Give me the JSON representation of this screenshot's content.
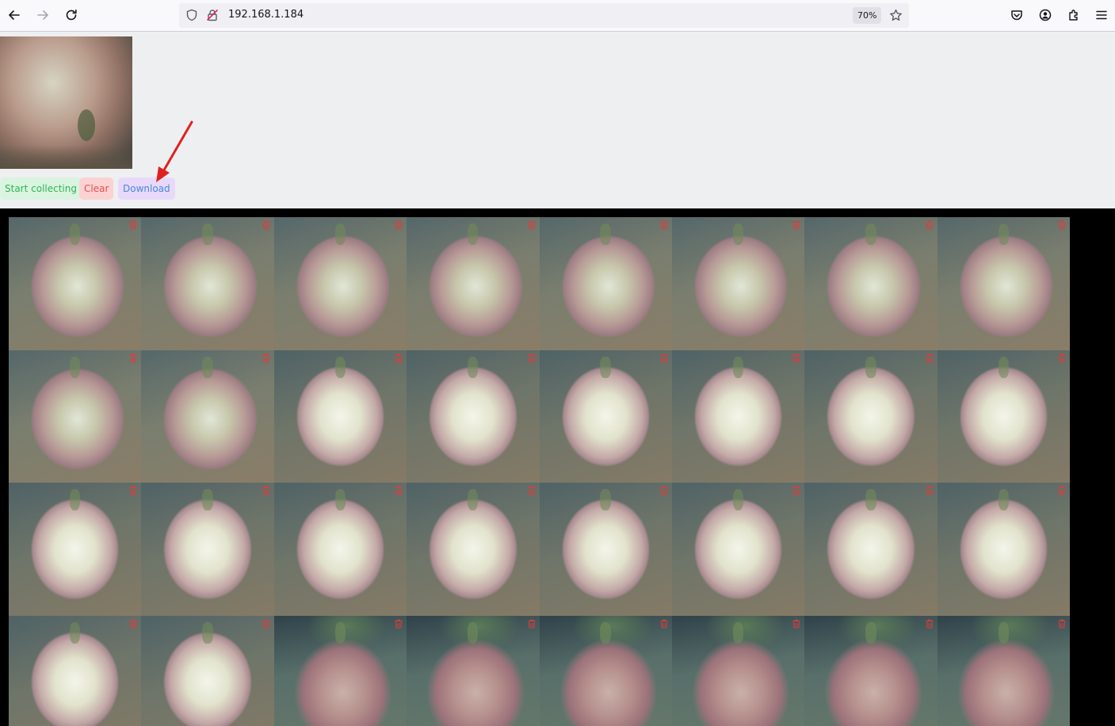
{
  "browser": {
    "url": "192.168.1.184",
    "zoom": "70%",
    "icons": {
      "back": "back-arrow-icon",
      "forward": "forward-arrow-icon",
      "reload": "reload-icon",
      "shield": "tracking-shield-icon",
      "insecure": "insecure-lock-icon",
      "bookmark": "star-icon",
      "pocket": "pocket-icon",
      "account": "account-icon",
      "extensions": "extensions-icon",
      "menu": "hamburger-menu-icon"
    }
  },
  "controls": {
    "start_label": "Start collecting",
    "clear_label": "Clear",
    "download_label": "Download"
  },
  "colors": {
    "start_bg": "#d9f4df",
    "start_text": "#34b35a",
    "clear_bg": "#fbd2d2",
    "clear_text": "#e05252",
    "download_bg": "#e8d9fb",
    "download_text": "#4a88d8",
    "annotation_arrow": "#e02020",
    "gallery_bg": "#000000",
    "trash_icon": "#e23b3b"
  },
  "gallery": {
    "columns": 8,
    "tiles": [
      "a",
      "a",
      "a",
      "a",
      "a",
      "a",
      "a",
      "a",
      "a",
      "a",
      "b",
      "b",
      "b",
      "b",
      "b",
      "b",
      "b",
      "b",
      "b",
      "b",
      "b",
      "b",
      "b",
      "b",
      "b",
      "b",
      "c",
      "c",
      "c",
      "c",
      "c",
      "c"
    ],
    "tile_icon": "trash-icon"
  }
}
